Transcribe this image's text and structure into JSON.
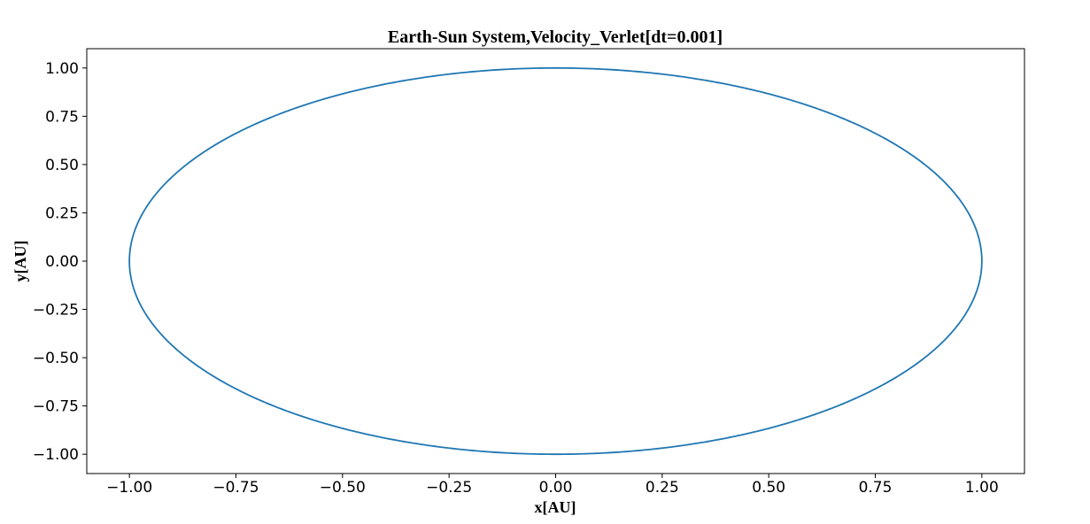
{
  "chart_data": {
    "type": "line",
    "title": "Earth-Sun System,Velocity_Verlet[dt=0.001]",
    "xlabel": "x[AU]",
    "ylabel": "y[AU]",
    "xlim": [
      -1.1,
      1.1
    ],
    "ylim": [
      -1.1,
      1.1
    ],
    "grid": false,
    "x_ticks": [
      "−1.00",
      "−0.75",
      "−0.50",
      "−0.25",
      "0.00",
      "0.25",
      "0.50",
      "0.75",
      "1.00"
    ],
    "x_tick_values": [
      -1.0,
      -0.75,
      -0.5,
      -0.25,
      0.0,
      0.25,
      0.5,
      0.75,
      1.0
    ],
    "y_ticks": [
      "1.00",
      "0.75",
      "0.50",
      "0.25",
      "0.00",
      "−0.25",
      "−0.50",
      "−0.75",
      "−1.00"
    ],
    "y_tick_values": [
      1.0,
      0.75,
      0.5,
      0.25,
      0.0,
      -0.25,
      -0.5,
      -0.75,
      -1.0
    ],
    "series": [
      {
        "color": "#1f77b4",
        "curve": "circle",
        "center": [
          0.0,
          0.0
        ],
        "radius": 1.0
      }
    ]
  }
}
